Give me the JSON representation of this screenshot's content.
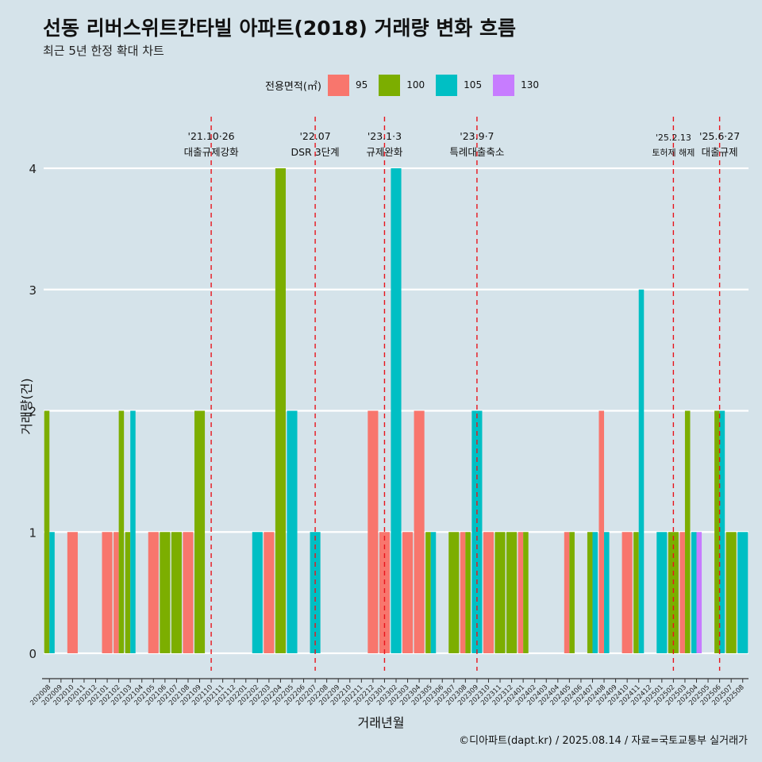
{
  "chart_data": {
    "type": "bar",
    "title": "선동 리버스위트칸타빌 아파트(2018) 거래량 변화 흐름",
    "subtitle": "최근 5년 한정 확대 차트",
    "xlabel": "거래년월",
    "ylabel": "거래량(건)",
    "ylim": [
      0,
      4
    ],
    "yticks": [
      "0",
      "1",
      "2",
      "3",
      "4"
    ],
    "legend": {
      "title": "전용면적(㎡)",
      "position": "top",
      "items": [
        {
          "name": "95",
          "color": "#f8766d"
        },
        {
          "name": "100",
          "color": "#7cae00"
        },
        {
          "name": "105",
          "color": "#00bfc4"
        },
        {
          "name": "130",
          "color": "#c77cff"
        }
      ]
    },
    "categories": [
      "202008",
      "202009",
      "202010",
      "202011",
      "202012",
      "202101",
      "202102",
      "202103",
      "202104",
      "202105",
      "202106",
      "202107",
      "202108",
      "202109",
      "202110",
      "202111",
      "202112",
      "202201",
      "202202",
      "202203",
      "202204",
      "202205",
      "202206",
      "202207",
      "202208",
      "202209",
      "202210",
      "202211",
      "202212",
      "202301",
      "202302",
      "202303",
      "202304",
      "202305",
      "202306",
      "202307",
      "202308",
      "202309",
      "202310",
      "202311",
      "202312",
      "202401",
      "202402",
      "202403",
      "202404",
      "202405",
      "202406",
      "202407",
      "202408",
      "202409",
      "202410",
      "202411",
      "202412",
      "202501",
      "202502",
      "202503",
      "202504",
      "202505",
      "202506",
      "202507",
      "202508"
    ],
    "series": [
      {
        "name": "95",
        "color": "#f8766d",
        "values": [
          0,
          0,
          1,
          0,
          0,
          1,
          1,
          0,
          0,
          1,
          0,
          0,
          1,
          0,
          0,
          0,
          0,
          0,
          0,
          1,
          0,
          0,
          0,
          0,
          0,
          0,
          0,
          0,
          2,
          1,
          0,
          1,
          2,
          0,
          0,
          0,
          1,
          0,
          1,
          0,
          0,
          1,
          0,
          0,
          0,
          1,
          0,
          0,
          2,
          0,
          1,
          0,
          0,
          0,
          0,
          1,
          0,
          0,
          0,
          0,
          0
        ]
      },
      {
        "name": "100",
        "color": "#7cae00",
        "values": [
          2,
          0,
          0,
          0,
          0,
          0,
          2,
          1,
          0,
          0,
          1,
          1,
          0,
          2,
          0,
          0,
          0,
          0,
          0,
          0,
          4,
          0,
          0,
          0,
          0,
          0,
          0,
          0,
          0,
          0,
          0,
          0,
          0,
          1,
          0,
          1,
          1,
          0,
          0,
          1,
          1,
          1,
          0,
          0,
          0,
          1,
          0,
          1,
          0,
          0,
          0,
          1,
          0,
          0,
          1,
          2,
          0,
          0,
          2,
          1,
          0
        ]
      },
      {
        "name": "105",
        "color": "#00bfc4",
        "values": [
          1,
          0,
          0,
          0,
          0,
          0,
          0,
          2,
          0,
          0,
          0,
          0,
          0,
          0,
          0,
          0,
          0,
          0,
          1,
          0,
          0,
          2,
          0,
          1,
          0,
          0,
          0,
          0,
          0,
          0,
          4,
          0,
          0,
          1,
          0,
          0,
          0,
          2,
          0,
          0,
          0,
          0,
          0,
          0,
          0,
          0,
          0,
          1,
          1,
          0,
          0,
          3,
          0,
          1,
          0,
          0,
          1,
          0,
          2,
          0,
          1
        ]
      },
      {
        "name": "130",
        "color": "#c77cff",
        "values": [
          0,
          0,
          0,
          0,
          0,
          0,
          0,
          0,
          0,
          0,
          0,
          0,
          0,
          0,
          0,
          0,
          0,
          0,
          0,
          0,
          0,
          0,
          0,
          0,
          0,
          0,
          0,
          0,
          0,
          0,
          0,
          0,
          0,
          0,
          0,
          0,
          0,
          0,
          0,
          0,
          0,
          0,
          0,
          0,
          0,
          0,
          0,
          0,
          0,
          0,
          0,
          0,
          0,
          0,
          0,
          0,
          1,
          0,
          0,
          0,
          0
        ]
      }
    ],
    "annotations": [
      {
        "x": "202110",
        "date": "'21.10·26",
        "label": "대출규제강화",
        "size": "normal"
      },
      {
        "x": "202207",
        "date": "'22.07",
        "label": "DSR 3단계",
        "size": "normal"
      },
      {
        "x": "202301",
        "date": "'23.1·3",
        "label": "규제완화",
        "size": "normal"
      },
      {
        "x": "202309",
        "date": "'23.9·7",
        "label": "특례대출축소",
        "size": "normal"
      },
      {
        "x": "202502",
        "date": "'25.2.13",
        "label": "토허제 해제",
        "size": "small"
      },
      {
        "x": "202506",
        "date": "'25.6·27",
        "label": "대출규제",
        "size": "normal"
      }
    ]
  },
  "caption": "©디아파트(dapt.kr) / 2025.08.14 / 자료=국토교통부 실거래가"
}
